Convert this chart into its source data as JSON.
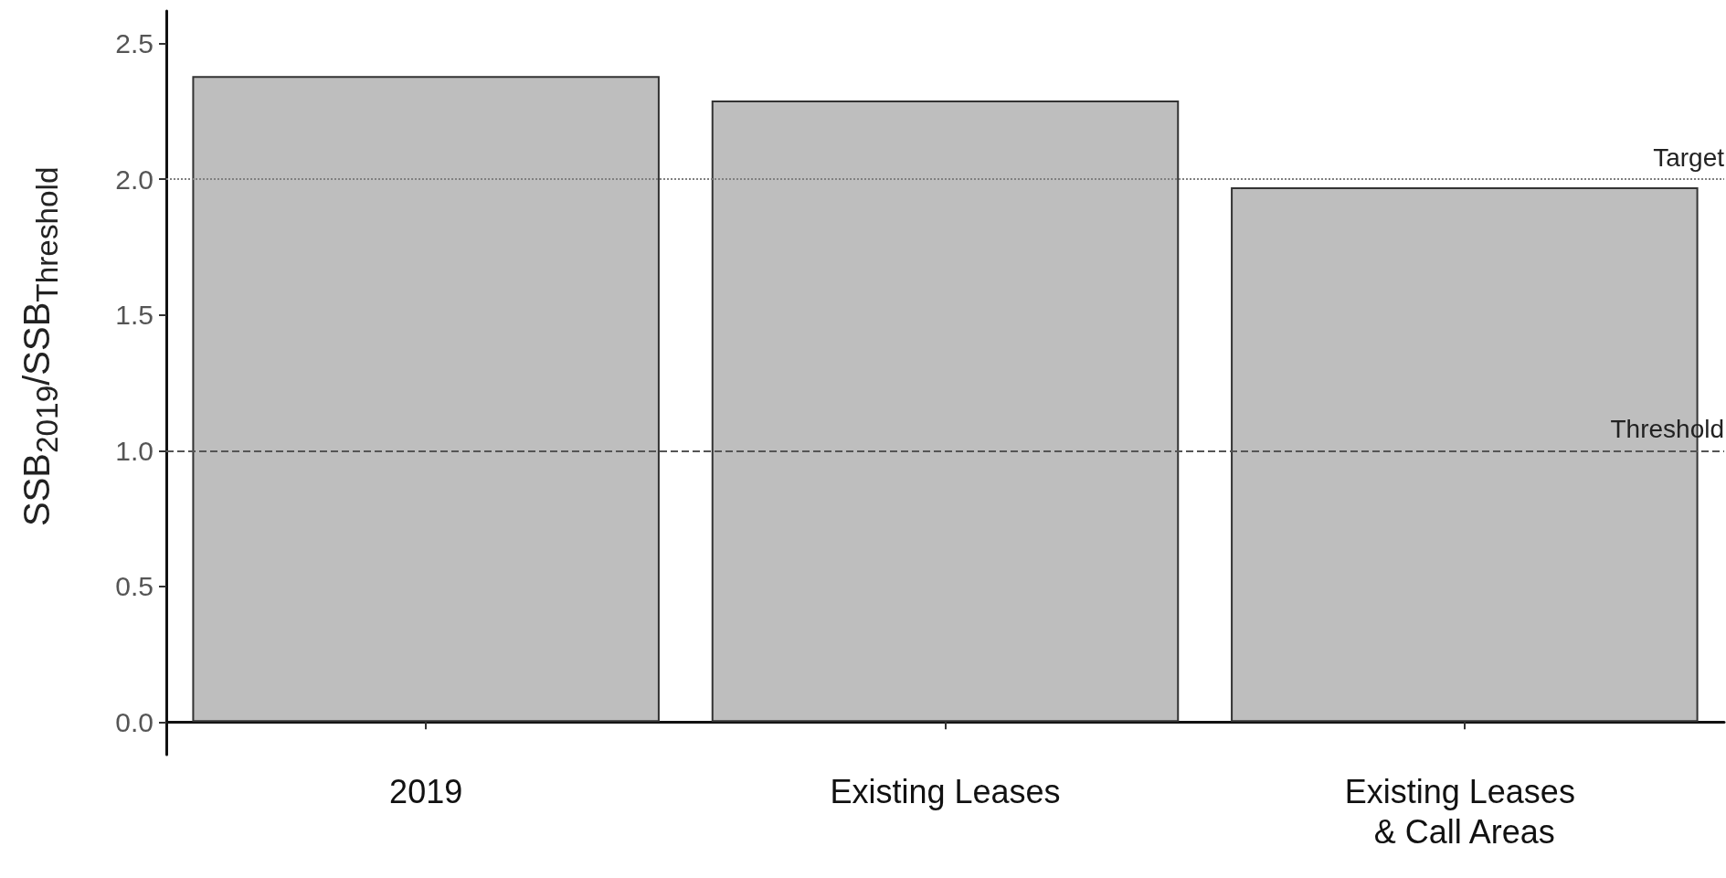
{
  "chart_data": {
    "type": "bar",
    "ylabel": "SSB$_{2019}$/SSB$_{Threshold}$",
    "categories": [
      "2019",
      "Existing Leases",
      "Existing Leases & Call Areas"
    ],
    "values": [
      2.38,
      2.29,
      1.97
    ],
    "color": "#bebebe",
    "ylim": [
      -0.12,
      2.62
    ],
    "yticks": [
      {
        "value": 0,
        "label": "0.0"
      },
      0.5,
      {
        "value": 1,
        "label": "1.0"
      },
      1.5,
      {
        "value": 2,
        "label": "2.0"
      },
      2.5
    ],
    "grid": false,
    "ref_lines": [
      {
        "axis": "y",
        "value": 2,
        "label": "Target",
        "line_style": "dotted",
        "color": "#808080"
      },
      {
        "axis": "y",
        "value": 1,
        "label": "Threshold",
        "line_style": "dashed",
        "color": "#555555"
      }
    ]
  }
}
